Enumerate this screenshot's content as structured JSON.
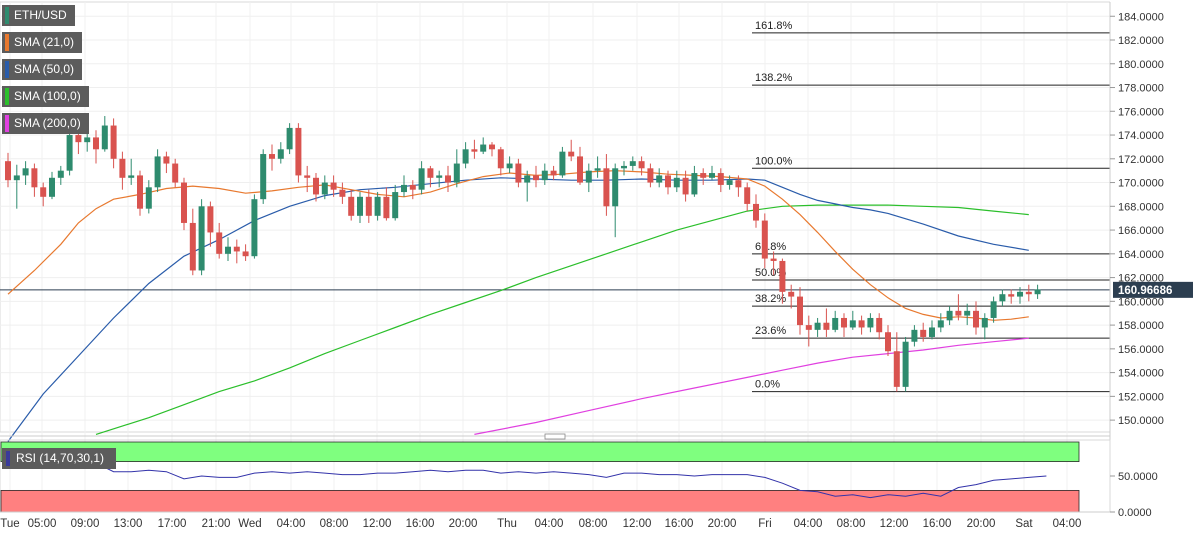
{
  "legend": {
    "symbol": "ETH/USD",
    "sma21": "SMA (21,0)",
    "sma50": "SMA (50,0)",
    "sma100": "SMA (100,0)",
    "sma200": "SMA (200,0)",
    "rsi": "RSI (14,70,30,1)"
  },
  "colors": {
    "up": "#2e8b6e",
    "down": "#d9534f",
    "sma21": "#e8792f",
    "sma50": "#2a5caa",
    "sma100": "#2bbf2b",
    "sma200": "#e040e0",
    "rsi": "#3333aa",
    "rsi_overbought": "#7fff7f",
    "rsi_oversold": "#ff8080"
  },
  "chart_data": {
    "type": "candlestick",
    "y_range": [
      149.0,
      185.2
    ],
    "y_ticks": [
      "184.0000",
      "182.0000",
      "180.0000",
      "178.0000",
      "176.0000",
      "174.0000",
      "172.0000",
      "170.0000",
      "168.0000",
      "166.0000",
      "164.0000",
      "162.0000",
      "160.0000",
      "158.0000",
      "156.0000",
      "154.0000",
      "152.0000",
      "150.0000"
    ],
    "y_tick_values": [
      184,
      182,
      180,
      178,
      176,
      174,
      172,
      170,
      168,
      166,
      164,
      162,
      160,
      158,
      156,
      154,
      152,
      150
    ],
    "current_price": 160.96686,
    "current_price_label": "160.96686",
    "x_labels": [
      "Tue",
      "05:00",
      "09:00",
      "13:00",
      "17:00",
      "21:00",
      "Wed",
      "04:00",
      "08:00",
      "12:00",
      "16:00",
      "20:00",
      "Thu",
      "04:00",
      "08:00",
      "12:00",
      "16:00",
      "20:00",
      "Fri",
      "04:00",
      "08:00",
      "12:00",
      "16:00",
      "20:00",
      "Sat",
      "04:00"
    ],
    "fibonacci": [
      {
        "label": "161.8%",
        "value": 182.6
      },
      {
        "label": "138.2%",
        "value": 178.2
      },
      {
        "label": "100.0%",
        "value": 171.2
      },
      {
        "label": "61.8%",
        "value": 164.0
      },
      {
        "label": "50.0%",
        "value": 161.8
      },
      {
        "label": "38.2%",
        "value": 159.6
      },
      {
        "label": "23.6%",
        "value": 156.9
      },
      {
        "label": "0.0%",
        "value": 152.4
      }
    ],
    "candles": [
      [
        171.8,
        170.2,
        172.5,
        169.6
      ],
      [
        170.2,
        170.6,
        171.5,
        167.8
      ],
      [
        170.6,
        171.2,
        171.8,
        169.8
      ],
      [
        171.2,
        169.6,
        171.6,
        168.8
      ],
      [
        169.6,
        168.8,
        170.0,
        168.0
      ],
      [
        168.8,
        170.4,
        170.9,
        168.6
      ],
      [
        170.4,
        171.0,
        171.4,
        169.8
      ],
      [
        171.0,
        174.0,
        174.8,
        170.6
      ],
      [
        174.0,
        173.4,
        175.2,
        172.4
      ],
      [
        173.4,
        173.8,
        175.0,
        172.6
      ],
      [
        173.8,
        172.8,
        174.4,
        171.6
      ],
      [
        172.8,
        174.8,
        175.6,
        172.6
      ],
      [
        174.8,
        172.0,
        175.4,
        171.2
      ],
      [
        172.0,
        170.4,
        172.6,
        169.4
      ],
      [
        170.4,
        170.6,
        172.0,
        169.8
      ],
      [
        170.6,
        167.8,
        171.0,
        167.2
      ],
      [
        167.8,
        169.6,
        170.2,
        167.4
      ],
      [
        169.6,
        172.2,
        172.8,
        169.2
      ],
      [
        172.2,
        171.6,
        172.6,
        170.8
      ],
      [
        171.6,
        170.0,
        172.0,
        169.6
      ],
      [
        170.0,
        166.6,
        170.4,
        166.0
      ],
      [
        166.6,
        162.6,
        167.8,
        162.2
      ],
      [
        162.6,
        168.0,
        168.6,
        162.2
      ],
      [
        168.0,
        165.8,
        168.4,
        164.6
      ],
      [
        165.8,
        164.0,
        166.6,
        163.6
      ],
      [
        164.0,
        164.6,
        165.4,
        163.4
      ],
      [
        164.6,
        164.2,
        165.2,
        163.2
      ],
      [
        164.2,
        163.8,
        164.8,
        163.4
      ],
      [
        163.8,
        168.6,
        169.0,
        163.6
      ],
      [
        168.6,
        172.4,
        172.8,
        168.2
      ],
      [
        172.4,
        172.0,
        173.2,
        171.0
      ],
      [
        172.0,
        172.8,
        173.4,
        171.6
      ],
      [
        172.8,
        174.6,
        175.0,
        172.4
      ],
      [
        174.6,
        170.6,
        175.0,
        170.0
      ],
      [
        170.6,
        170.4,
        171.4,
        169.2
      ],
      [
        170.4,
        169.0,
        170.8,
        168.4
      ],
      [
        169.0,
        170.0,
        170.6,
        168.6
      ],
      [
        170.0,
        169.4,
        170.6,
        168.8
      ],
      [
        169.4,
        168.8,
        170.0,
        168.2
      ],
      [
        168.8,
        167.2,
        169.4,
        166.8
      ],
      [
        167.2,
        168.8,
        169.2,
        166.6
      ],
      [
        168.8,
        167.2,
        169.4,
        166.6
      ],
      [
        167.2,
        168.8,
        169.2,
        166.8
      ],
      [
        168.8,
        167.0,
        169.6,
        166.8
      ],
      [
        167.0,
        169.2,
        169.8,
        166.8
      ],
      [
        169.2,
        169.8,
        170.6,
        168.8
      ],
      [
        169.8,
        169.4,
        170.2,
        168.6
      ],
      [
        169.4,
        171.2,
        171.8,
        169.0
      ],
      [
        171.2,
        170.4,
        171.4,
        169.6
      ],
      [
        170.4,
        170.6,
        171.0,
        169.6
      ],
      [
        170.6,
        170.0,
        171.4,
        169.2
      ],
      [
        170.0,
        171.6,
        172.8,
        169.6
      ],
      [
        171.6,
        172.8,
        173.4,
        171.2
      ],
      [
        172.8,
        172.6,
        173.6,
        172.0
      ],
      [
        172.6,
        173.2,
        173.8,
        172.4
      ],
      [
        173.2,
        172.8,
        173.4,
        172.2
      ],
      [
        172.8,
        171.2,
        173.0,
        170.6
      ],
      [
        171.2,
        171.6,
        172.2,
        170.8
      ],
      [
        171.6,
        170.0,
        172.0,
        169.6
      ],
      [
        170.0,
        170.6,
        171.0,
        168.4
      ],
      [
        170.6,
        170.2,
        171.4,
        169.6
      ],
      [
        170.2,
        171.0,
        171.6,
        169.8
      ],
      [
        171.0,
        170.6,
        171.4,
        170.2
      ],
      [
        170.6,
        172.6,
        173.0,
        170.4
      ],
      [
        172.6,
        172.2,
        173.6,
        171.8
      ],
      [
        172.2,
        170.0,
        173.0,
        169.8
      ],
      [
        170.0,
        171.0,
        171.6,
        169.2
      ],
      [
        171.0,
        171.2,
        172.2,
        170.4
      ],
      [
        171.2,
        168.0,
        172.4,
        167.2
      ],
      [
        168.0,
        171.2,
        171.6,
        165.4
      ],
      [
        171.2,
        171.4,
        171.8,
        170.6
      ],
      [
        171.4,
        171.8,
        172.2,
        171.0
      ],
      [
        171.8,
        171.2,
        172.2,
        170.6
      ],
      [
        171.2,
        170.0,
        171.6,
        169.6
      ],
      [
        170.0,
        170.6,
        171.2,
        169.6
      ],
      [
        170.6,
        169.6,
        171.0,
        169.0
      ],
      [
        169.6,
        170.4,
        171.0,
        169.2
      ],
      [
        170.4,
        169.0,
        171.0,
        168.4
      ],
      [
        169.0,
        170.8,
        171.4,
        168.8
      ],
      [
        170.8,
        170.4,
        171.2,
        169.8
      ],
      [
        170.4,
        170.8,
        171.4,
        170.2
      ],
      [
        170.8,
        169.8,
        171.2,
        169.2
      ],
      [
        169.8,
        170.2,
        170.6,
        169.4
      ],
      [
        170.2,
        169.6,
        170.6,
        168.8
      ],
      [
        169.6,
        168.2,
        170.0,
        167.6
      ],
      [
        168.2,
        166.8,
        169.0,
        166.2
      ],
      [
        166.8,
        163.6,
        167.4,
        162.8
      ],
      [
        163.6,
        163.4,
        164.2,
        162.2
      ],
      [
        163.4,
        160.8,
        163.6,
        159.8
      ],
      [
        160.8,
        160.4,
        161.4,
        159.4
      ],
      [
        160.4,
        158.0,
        161.2,
        157.2
      ],
      [
        158.0,
        157.6,
        158.8,
        156.2
      ],
      [
        157.6,
        158.2,
        158.6,
        157.0
      ],
      [
        158.2,
        157.6,
        159.4,
        157.0
      ],
      [
        157.6,
        158.6,
        159.2,
        157.4
      ],
      [
        158.6,
        157.8,
        159.0,
        157.0
      ],
      [
        157.8,
        158.4,
        159.2,
        157.6
      ],
      [
        158.4,
        157.8,
        158.8,
        157.2
      ],
      [
        157.8,
        158.6,
        159.0,
        157.4
      ],
      [
        158.6,
        157.4,
        159.0,
        156.8
      ],
      [
        157.4,
        155.8,
        158.0,
        155.4
      ],
      [
        155.8,
        152.8,
        157.4,
        152.4
      ],
      [
        152.8,
        156.6,
        157.0,
        152.4
      ],
      [
        156.6,
        157.6,
        158.0,
        156.2
      ],
      [
        157.6,
        157.0,
        158.2,
        156.6
      ],
      [
        157.0,
        157.8,
        158.4,
        156.8
      ],
      [
        157.8,
        158.4,
        159.0,
        157.4
      ],
      [
        158.4,
        159.2,
        159.6,
        158.0
      ],
      [
        159.2,
        158.8,
        160.6,
        158.4
      ],
      [
        158.8,
        159.2,
        159.8,
        158.0
      ],
      [
        159.2,
        157.8,
        160.0,
        157.2
      ],
      [
        157.8,
        158.6,
        159.0,
        156.8
      ],
      [
        158.6,
        160.0,
        160.4,
        158.2
      ],
      [
        160.0,
        160.6,
        161.0,
        159.6
      ],
      [
        160.6,
        160.4,
        161.0,
        159.8
      ],
      [
        160.4,
        160.8,
        161.2,
        159.8
      ],
      [
        160.8,
        160.6,
        161.4,
        160.0
      ],
      [
        160.6,
        161.0,
        161.4,
        160.2
      ]
    ],
    "sma21": [
      [
        0,
        160.6
      ],
      [
        3,
        162.6
      ],
      [
        6,
        164.8
      ],
      [
        8,
        166.6
      ],
      [
        10,
        167.8
      ],
      [
        12,
        168.6
      ],
      [
        15,
        169.0
      ],
      [
        18,
        169.5
      ],
      [
        21,
        169.7
      ],
      [
        24,
        169.5
      ],
      [
        27,
        169.1
      ],
      [
        30,
        169.3
      ],
      [
        33,
        169.6
      ],
      [
        36,
        169.8
      ],
      [
        39,
        169.4
      ],
      [
        42,
        169.0
      ],
      [
        45,
        168.8
      ],
      [
        48,
        169.2
      ],
      [
        51,
        169.9
      ],
      [
        54,
        170.5
      ],
      [
        57,
        170.8
      ],
      [
        60,
        170.6
      ],
      [
        63,
        170.7
      ],
      [
        66,
        170.9
      ],
      [
        69,
        171.0
      ],
      [
        72,
        170.9
      ],
      [
        75,
        170.7
      ],
      [
        78,
        170.6
      ],
      [
        81,
        170.5
      ],
      [
        84,
        170.3
      ],
      [
        86,
        169.7
      ],
      [
        88,
        168.6
      ],
      [
        90,
        167.3
      ],
      [
        92,
        165.8
      ],
      [
        94,
        164.2
      ],
      [
        96,
        162.7
      ],
      [
        98,
        161.4
      ],
      [
        100,
        160.3
      ],
      [
        102,
        159.4
      ],
      [
        104,
        158.9
      ],
      [
        106,
        158.6
      ],
      [
        108,
        158.7
      ],
      [
        110,
        158.6
      ],
      [
        112,
        158.4
      ],
      [
        114,
        158.5
      ],
      [
        116,
        158.7
      ]
    ],
    "sma50": [
      [
        0,
        148.2
      ],
      [
        4,
        152.2
      ],
      [
        8,
        155.4
      ],
      [
        12,
        158.6
      ],
      [
        16,
        161.5
      ],
      [
        20,
        163.8
      ],
      [
        24,
        165.2
      ],
      [
        28,
        166.8
      ],
      [
        32,
        168.0
      ],
      [
        36,
        168.9
      ],
      [
        40,
        169.4
      ],
      [
        44,
        169.6
      ],
      [
        48,
        169.9
      ],
      [
        52,
        170.2
      ],
      [
        56,
        170.4
      ],
      [
        60,
        170.3
      ],
      [
        64,
        170.2
      ],
      [
        68,
        170.2
      ],
      [
        72,
        170.3
      ],
      [
        76,
        170.2
      ],
      [
        80,
        170.2
      ],
      [
        84,
        170.3
      ],
      [
        86,
        170.2
      ],
      [
        88,
        169.6
      ],
      [
        90,
        169.0
      ],
      [
        92,
        168.5
      ],
      [
        94,
        168.2
      ],
      [
        96,
        167.9
      ],
      [
        98,
        167.7
      ],
      [
        100,
        167.4
      ],
      [
        104,
        166.5
      ],
      [
        108,
        165.5
      ],
      [
        112,
        164.8
      ],
      [
        116,
        164.3
      ]
    ],
    "sma100": [
      [
        10,
        148.8
      ],
      [
        16,
        150.2
      ],
      [
        20,
        151.3
      ],
      [
        24,
        152.4
      ],
      [
        28,
        153.3
      ],
      [
        32,
        154.4
      ],
      [
        36,
        155.6
      ],
      [
        40,
        156.7
      ],
      [
        44,
        157.8
      ],
      [
        48,
        158.9
      ],
      [
        52,
        159.9
      ],
      [
        56,
        160.9
      ],
      [
        60,
        162.0
      ],
      [
        64,
        163.0
      ],
      [
        68,
        164.0
      ],
      [
        72,
        165.0
      ],
      [
        76,
        166.0
      ],
      [
        80,
        166.8
      ],
      [
        84,
        167.6
      ],
      [
        88,
        168.0
      ],
      [
        92,
        168.1
      ],
      [
        96,
        168.1
      ],
      [
        100,
        168.1
      ],
      [
        104,
        168.0
      ],
      [
        108,
        167.9
      ],
      [
        112,
        167.6
      ],
      [
        116,
        167.3
      ]
    ],
    "sma200": [
      [
        53,
        148.8
      ],
      [
        60,
        149.8
      ],
      [
        66,
        150.8
      ],
      [
        72,
        151.8
      ],
      [
        78,
        152.7
      ],
      [
        84,
        153.6
      ],
      [
        88,
        154.2
      ],
      [
        92,
        154.8
      ],
      [
        96,
        155.3
      ],
      [
        100,
        155.6
      ],
      [
        104,
        155.9
      ],
      [
        108,
        156.3
      ],
      [
        112,
        156.6
      ],
      [
        116,
        156.9
      ]
    ],
    "rsi_range": [
      0,
      100
    ],
    "rsi_ticks": [
      "50.0000",
      "0.0000"
    ],
    "rsi_tick_values": [
      50,
      0
    ],
    "rsi_bands": [
      70,
      30
    ],
    "rsi": [
      [
        0,
        66
      ],
      [
        3,
        68
      ],
      [
        6,
        70
      ],
      [
        8,
        72
      ],
      [
        10,
        68
      ],
      [
        12,
        56
      ],
      [
        14,
        56
      ],
      [
        16,
        58
      ],
      [
        18,
        56
      ],
      [
        20,
        46
      ],
      [
        22,
        50
      ],
      [
        24,
        48
      ],
      [
        26,
        48
      ],
      [
        28,
        54
      ],
      [
        30,
        56
      ],
      [
        32,
        54
      ],
      [
        34,
        56
      ],
      [
        36,
        54
      ],
      [
        38,
        52
      ],
      [
        40,
        52
      ],
      [
        42,
        54
      ],
      [
        44,
        54
      ],
      [
        46,
        56
      ],
      [
        48,
        58
      ],
      [
        50,
        56
      ],
      [
        52,
        58
      ],
      [
        54,
        58
      ],
      [
        56,
        54
      ],
      [
        58,
        56
      ],
      [
        60,
        54
      ],
      [
        62,
        56
      ],
      [
        64,
        54
      ],
      [
        66,
        52
      ],
      [
        68,
        48
      ],
      [
        70,
        54
      ],
      [
        72,
        54
      ],
      [
        74,
        52
      ],
      [
        76,
        52
      ],
      [
        78,
        50
      ],
      [
        80,
        52
      ],
      [
        82,
        52
      ],
      [
        84,
        52
      ],
      [
        86,
        48
      ],
      [
        88,
        40
      ],
      [
        90,
        30
      ],
      [
        92,
        28
      ],
      [
        94,
        22
      ],
      [
        96,
        24
      ],
      [
        98,
        20
      ],
      [
        100,
        24
      ],
      [
        102,
        22
      ],
      [
        104,
        26
      ],
      [
        106,
        22
      ],
      [
        108,
        34
      ],
      [
        110,
        38
      ],
      [
        112,
        44
      ],
      [
        114,
        46
      ],
      [
        116,
        48
      ],
      [
        118,
        50
      ]
    ]
  }
}
